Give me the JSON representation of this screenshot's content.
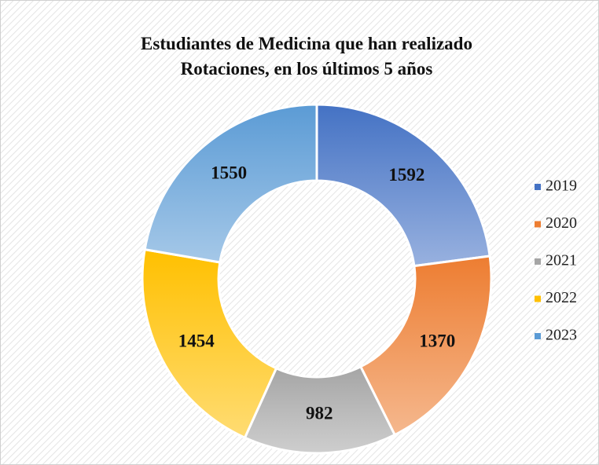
{
  "chart_data": {
    "type": "donut",
    "title": "Estudiantes de Medicina que han realizado Rotaciones, en los últimos 5 años",
    "categories": [
      "2019",
      "2020",
      "2021",
      "2022",
      "2023"
    ],
    "values": [
      1592,
      1370,
      982,
      1454,
      1550
    ],
    "colors": [
      "#4472c4",
      "#ed7d31",
      "#a5a5a5",
      "#ffc000",
      "#5b9bd5"
    ],
    "legend": "right"
  }
}
